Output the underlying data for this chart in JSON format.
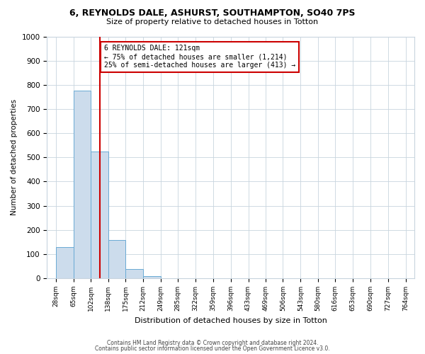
{
  "title_line1": "6, REYNOLDS DALE, ASHURST, SOUTHAMPTON, SO40 7PS",
  "title_line2": "Size of property relative to detached houses in Totton",
  "xlabel": "Distribution of detached houses by size in Totton",
  "ylabel": "Number of detached properties",
  "bar_color": "#ccdcec",
  "bar_edge_color": "#6aaad4",
  "bin_labels": [
    "28sqm",
    "65sqm",
    "102sqm",
    "138sqm",
    "175sqm",
    "212sqm",
    "249sqm",
    "285sqm",
    "322sqm",
    "359sqm",
    "396sqm",
    "433sqm",
    "469sqm",
    "506sqm",
    "543sqm",
    "580sqm",
    "616sqm",
    "653sqm",
    "690sqm",
    "727sqm",
    "764sqm"
  ],
  "label_values": [
    28,
    65,
    102,
    138,
    175,
    212,
    249,
    285,
    322,
    359,
    396,
    433,
    469,
    506,
    543,
    580,
    616,
    653,
    690,
    727,
    764
  ],
  "bar_values": [
    130,
    775,
    525,
    158,
    38,
    8,
    0,
    0,
    0,
    0,
    0,
    0,
    0,
    0,
    0,
    0,
    0,
    0,
    0,
    0
  ],
  "ylim": [
    0,
    1000
  ],
  "yticks": [
    0,
    100,
    200,
    300,
    400,
    500,
    600,
    700,
    800,
    900,
    1000
  ],
  "red_line_x": 121,
  "annotation_title": "6 REYNOLDS DALE: 121sqm",
  "annotation_line1": "← 75% of detached houses are smaller (1,214)",
  "annotation_line2": "25% of semi-detached houses are larger (413) →",
  "red_color": "#cc0000",
  "footer_line1": "Contains HM Land Registry data © Crown copyright and database right 2024.",
  "footer_line2": "Contains public sector information licensed under the Open Government Licence v3.0.",
  "background_color": "#ffffff",
  "grid_color": "#c8d4de"
}
